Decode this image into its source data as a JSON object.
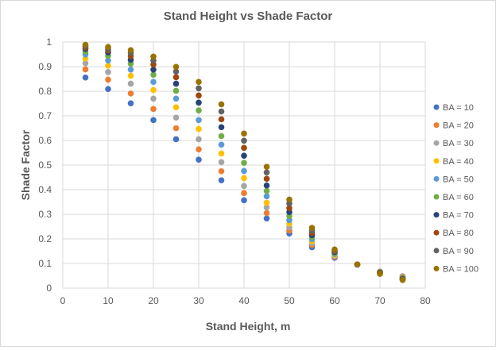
{
  "chart_data": {
    "type": "scatter",
    "title": "Stand Height vs Shade Factor",
    "xlabel": "Stand Height, m",
    "ylabel": "Shade Factor",
    "xlim": [
      0,
      80
    ],
    "ylim": [
      0,
      1
    ],
    "xticks": [
      "0",
      "10",
      "20",
      "30",
      "40",
      "50",
      "60",
      "70",
      "80"
    ],
    "yticks": [
      "0",
      "0.1",
      "0.2",
      "0.3",
      "0.4",
      "0.5",
      "0.6",
      "0.7",
      "0.8",
      "0.9",
      "1"
    ],
    "grid": true,
    "legend_position": "right",
    "x": [
      5,
      10,
      15,
      20,
      25,
      30,
      35,
      40,
      45,
      50,
      55,
      60,
      65,
      70,
      75
    ],
    "series": [
      {
        "name": "BA = 10",
        "color": "#4472C4",
        "values": [
          0.856,
          0.809,
          0.751,
          0.683,
          0.605,
          0.522,
          0.438,
          0.357,
          0.283,
          0.222,
          0.166,
          0.123,
          0.095,
          0.066,
          0.048
        ]
      },
      {
        "name": "BA = 20",
        "color": "#ED7D31",
        "values": [
          0.889,
          0.847,
          0.791,
          0.728,
          0.65,
          0.564,
          0.475,
          0.386,
          0.305,
          0.234,
          0.175,
          0.127,
          0.096,
          0.067,
          0.047
        ]
      },
      {
        "name": "BA = 30",
        "color": "#A5A5A5",
        "values": [
          0.914,
          0.878,
          0.831,
          0.77,
          0.693,
          0.605,
          0.512,
          0.415,
          0.328,
          0.247,
          0.183,
          0.131,
          0.096,
          0.066,
          0.045
        ]
      },
      {
        "name": "BA = 40",
        "color": "#FFC000",
        "values": [
          0.933,
          0.904,
          0.863,
          0.805,
          0.735,
          0.647,
          0.547,
          0.447,
          0.347,
          0.262,
          0.191,
          0.135,
          0.096,
          0.065,
          0.043
        ]
      },
      {
        "name": "BA = 50",
        "color": "#5B9BD5",
        "values": [
          0.949,
          0.925,
          0.888,
          0.838,
          0.77,
          0.683,
          0.583,
          0.476,
          0.373,
          0.276,
          0.199,
          0.139,
          0.096,
          0.065,
          0.041
        ]
      },
      {
        "name": "BA = 60",
        "color": "#70AD47",
        "values": [
          0.961,
          0.944,
          0.912,
          0.867,
          0.802,
          0.722,
          0.618,
          0.509,
          0.395,
          0.293,
          0.207,
          0.143,
          0.096,
          0.064,
          0.04
        ]
      },
      {
        "name": "BA = 70",
        "color": "#264478",
        "values": [
          0.972,
          0.958,
          0.928,
          0.888,
          0.831,
          0.754,
          0.654,
          0.538,
          0.417,
          0.309,
          0.215,
          0.147,
          0.096,
          0.063,
          0.038
        ]
      },
      {
        "name": "BA = 80",
        "color": "#9E480E",
        "values": [
          0.977,
          0.966,
          0.943,
          0.909,
          0.857,
          0.783,
          0.686,
          0.57,
          0.444,
          0.325,
          0.224,
          0.15,
          0.096,
          0.062,
          0.036
        ]
      },
      {
        "name": "BA = 90",
        "color": "#636363",
        "values": [
          0.983,
          0.971,
          0.956,
          0.925,
          0.88,
          0.812,
          0.718,
          0.599,
          0.47,
          0.344,
          0.234,
          0.153,
          0.096,
          0.06,
          0.035
        ]
      },
      {
        "name": "BA = 100",
        "color": "#997300",
        "values": [
          0.989,
          0.98,
          0.967,
          0.941,
          0.899,
          0.838,
          0.747,
          0.628,
          0.493,
          0.36,
          0.245,
          0.157,
          0.096,
          0.058,
          0.033
        ]
      }
    ]
  }
}
